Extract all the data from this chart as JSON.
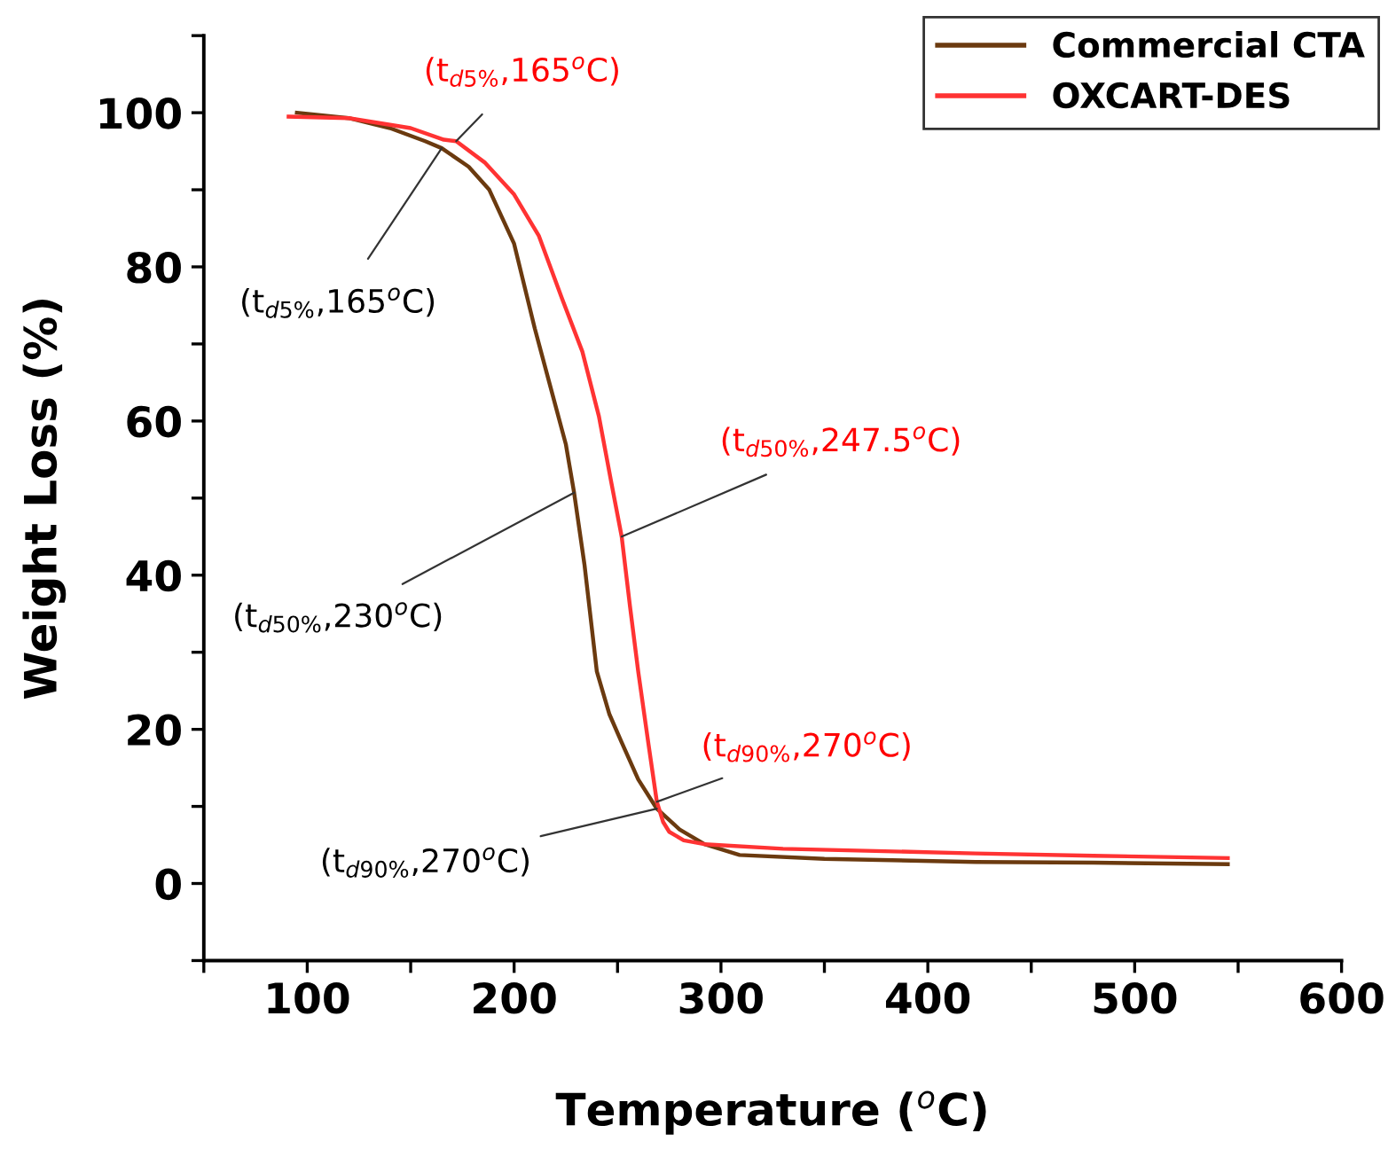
{
  "chart_data": {
    "type": "line",
    "xlabel": "Temperature ($^{o}$C)",
    "ylabel": "Weight Loss (%)",
    "xlim": [
      50,
      600
    ],
    "ylim": [
      -10,
      110
    ],
    "xticks": [
      {
        "value": 50,
        "label": null
      },
      100,
      {
        "value": 150,
        "label": null
      },
      200,
      {
        "value": 250,
        "label": null
      },
      300,
      {
        "value": 350,
        "label": null
      },
      400,
      {
        "value": 450,
        "label": null
      },
      500,
      {
        "value": 550,
        "label": null
      },
      600
    ],
    "yticks": [
      {
        "value": -10,
        "label": null
      },
      0,
      {
        "value": 10,
        "label": null
      },
      20,
      {
        "value": 30,
        "label": null
      },
      40,
      {
        "value": 50,
        "label": null
      },
      60,
      {
        "value": 70,
        "label": null
      },
      80,
      {
        "value": 90,
        "label": null
      },
      100,
      {
        "value": 110,
        "label": null
      }
    ],
    "grid": false,
    "legend": "top right",
    "marker": "none",
    "line_style": "solid",
    "series": [
      {
        "name": "Commercial CTA",
        "color": "#6b3a0f",
        "x": [
          95,
          120,
          140,
          157,
          165,
          178,
          188,
          200,
          210,
          218,
          225,
          229,
          234,
          240,
          246,
          252,
          260,
          269,
          280,
          292,
          309,
          350,
          423,
          480,
          545
        ],
        "values": [
          100,
          99.3,
          98,
          96.3,
          95.4,
          93,
          90,
          83,
          72,
          64,
          57,
          50.7,
          41.4,
          27.5,
          22,
          18.3,
          13.5,
          9.7,
          7,
          5.1,
          3.7,
          3.2,
          2.8,
          2.7,
          2.5
        ]
      },
      {
        "name": "OXCART-DES",
        "color": "#ff3333",
        "x": [
          91,
          120,
          150,
          166,
          172,
          186,
          200,
          212,
          223,
          233,
          241,
          247,
          252,
          256,
          260,
          265,
          269,
          272,
          275,
          282,
          292,
          330,
          423,
          480,
          545
        ],
        "values": [
          99.5,
          99.3,
          98,
          96.5,
          96.3,
          93.5,
          89.4,
          84,
          76,
          69,
          60.6,
          52,
          45,
          36,
          27.5,
          18,
          10.6,
          8,
          6.7,
          5.6,
          5.1,
          4.5,
          3.9,
          3.6,
          3.3
        ]
      }
    ],
    "annotations": [
      {
        "text": "(t$_{d5%}$,165$^{o}$C)",
        "x": 172,
        "y": 96.3
      },
      {
        "text": "(t$_{d5%}$,165$^{o}$C)",
        "x": 165,
        "y": 95.4
      },
      {
        "text": "(t$_{d50%}$,247.5$^{o}$C)",
        "x": 252,
        "y": 45
      },
      {
        "text": "(t$_{d50%}$,230$^{o}$C)",
        "x": 229,
        "y": 50.7
      },
      {
        "text": "(t$_{d90%}$,270$^{o}$C)",
        "x": 269,
        "y": 10.6
      },
      {
        "text": "(t$_{d90%}$,270$^{o}$C)",
        "x": 269,
        "y": 9.7
      }
    ]
  }
}
